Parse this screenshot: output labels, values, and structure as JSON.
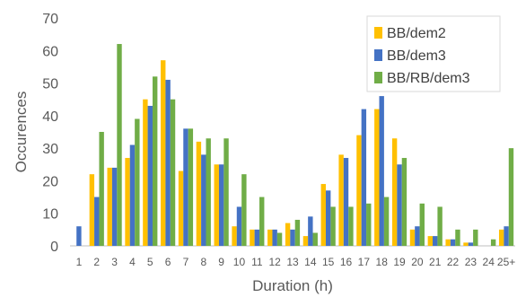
{
  "chart_data": {
    "type": "bar",
    "xlabel": "Duration (h)",
    "ylabel": "Occurences",
    "ylim": [
      0,
      70
    ],
    "yticks": [
      0,
      10,
      20,
      30,
      40,
      50,
      60,
      70
    ],
    "grid": false,
    "legend_position": "top-right",
    "categories": [
      "1",
      "2",
      "3",
      "4",
      "5",
      "6",
      "7",
      "8",
      "9",
      "10",
      "11",
      "12",
      "13",
      "14",
      "15",
      "16",
      "17",
      "18",
      "19",
      "20",
      "21",
      "22",
      "23",
      "24",
      "25+"
    ],
    "series": [
      {
        "name": "BB/dem2",
        "color": "#FFC000",
        "values": [
          0,
          22,
          24,
          27,
          45,
          57,
          23,
          32,
          25,
          6,
          5,
          5,
          7,
          3,
          19,
          28,
          34,
          42,
          33,
          5,
          3,
          2,
          1,
          0,
          5
        ]
      },
      {
        "name": "BB/dem3",
        "color": "#4472C4",
        "values": [
          6,
          15,
          24,
          31,
          43,
          51,
          36,
          28,
          25,
          12,
          5,
          5,
          5,
          9,
          17,
          27,
          42,
          46,
          25,
          6,
          3,
          2,
          1,
          0,
          6
        ]
      },
      {
        "name": "BB/RB/dem3",
        "color": "#70AD47",
        "values": [
          0,
          35,
          62,
          39,
          52,
          45,
          36,
          33,
          33,
          22,
          15,
          4,
          8,
          4,
          12,
          12,
          13,
          15,
          27,
          13,
          12,
          5,
          5,
          2,
          30
        ]
      }
    ]
  }
}
